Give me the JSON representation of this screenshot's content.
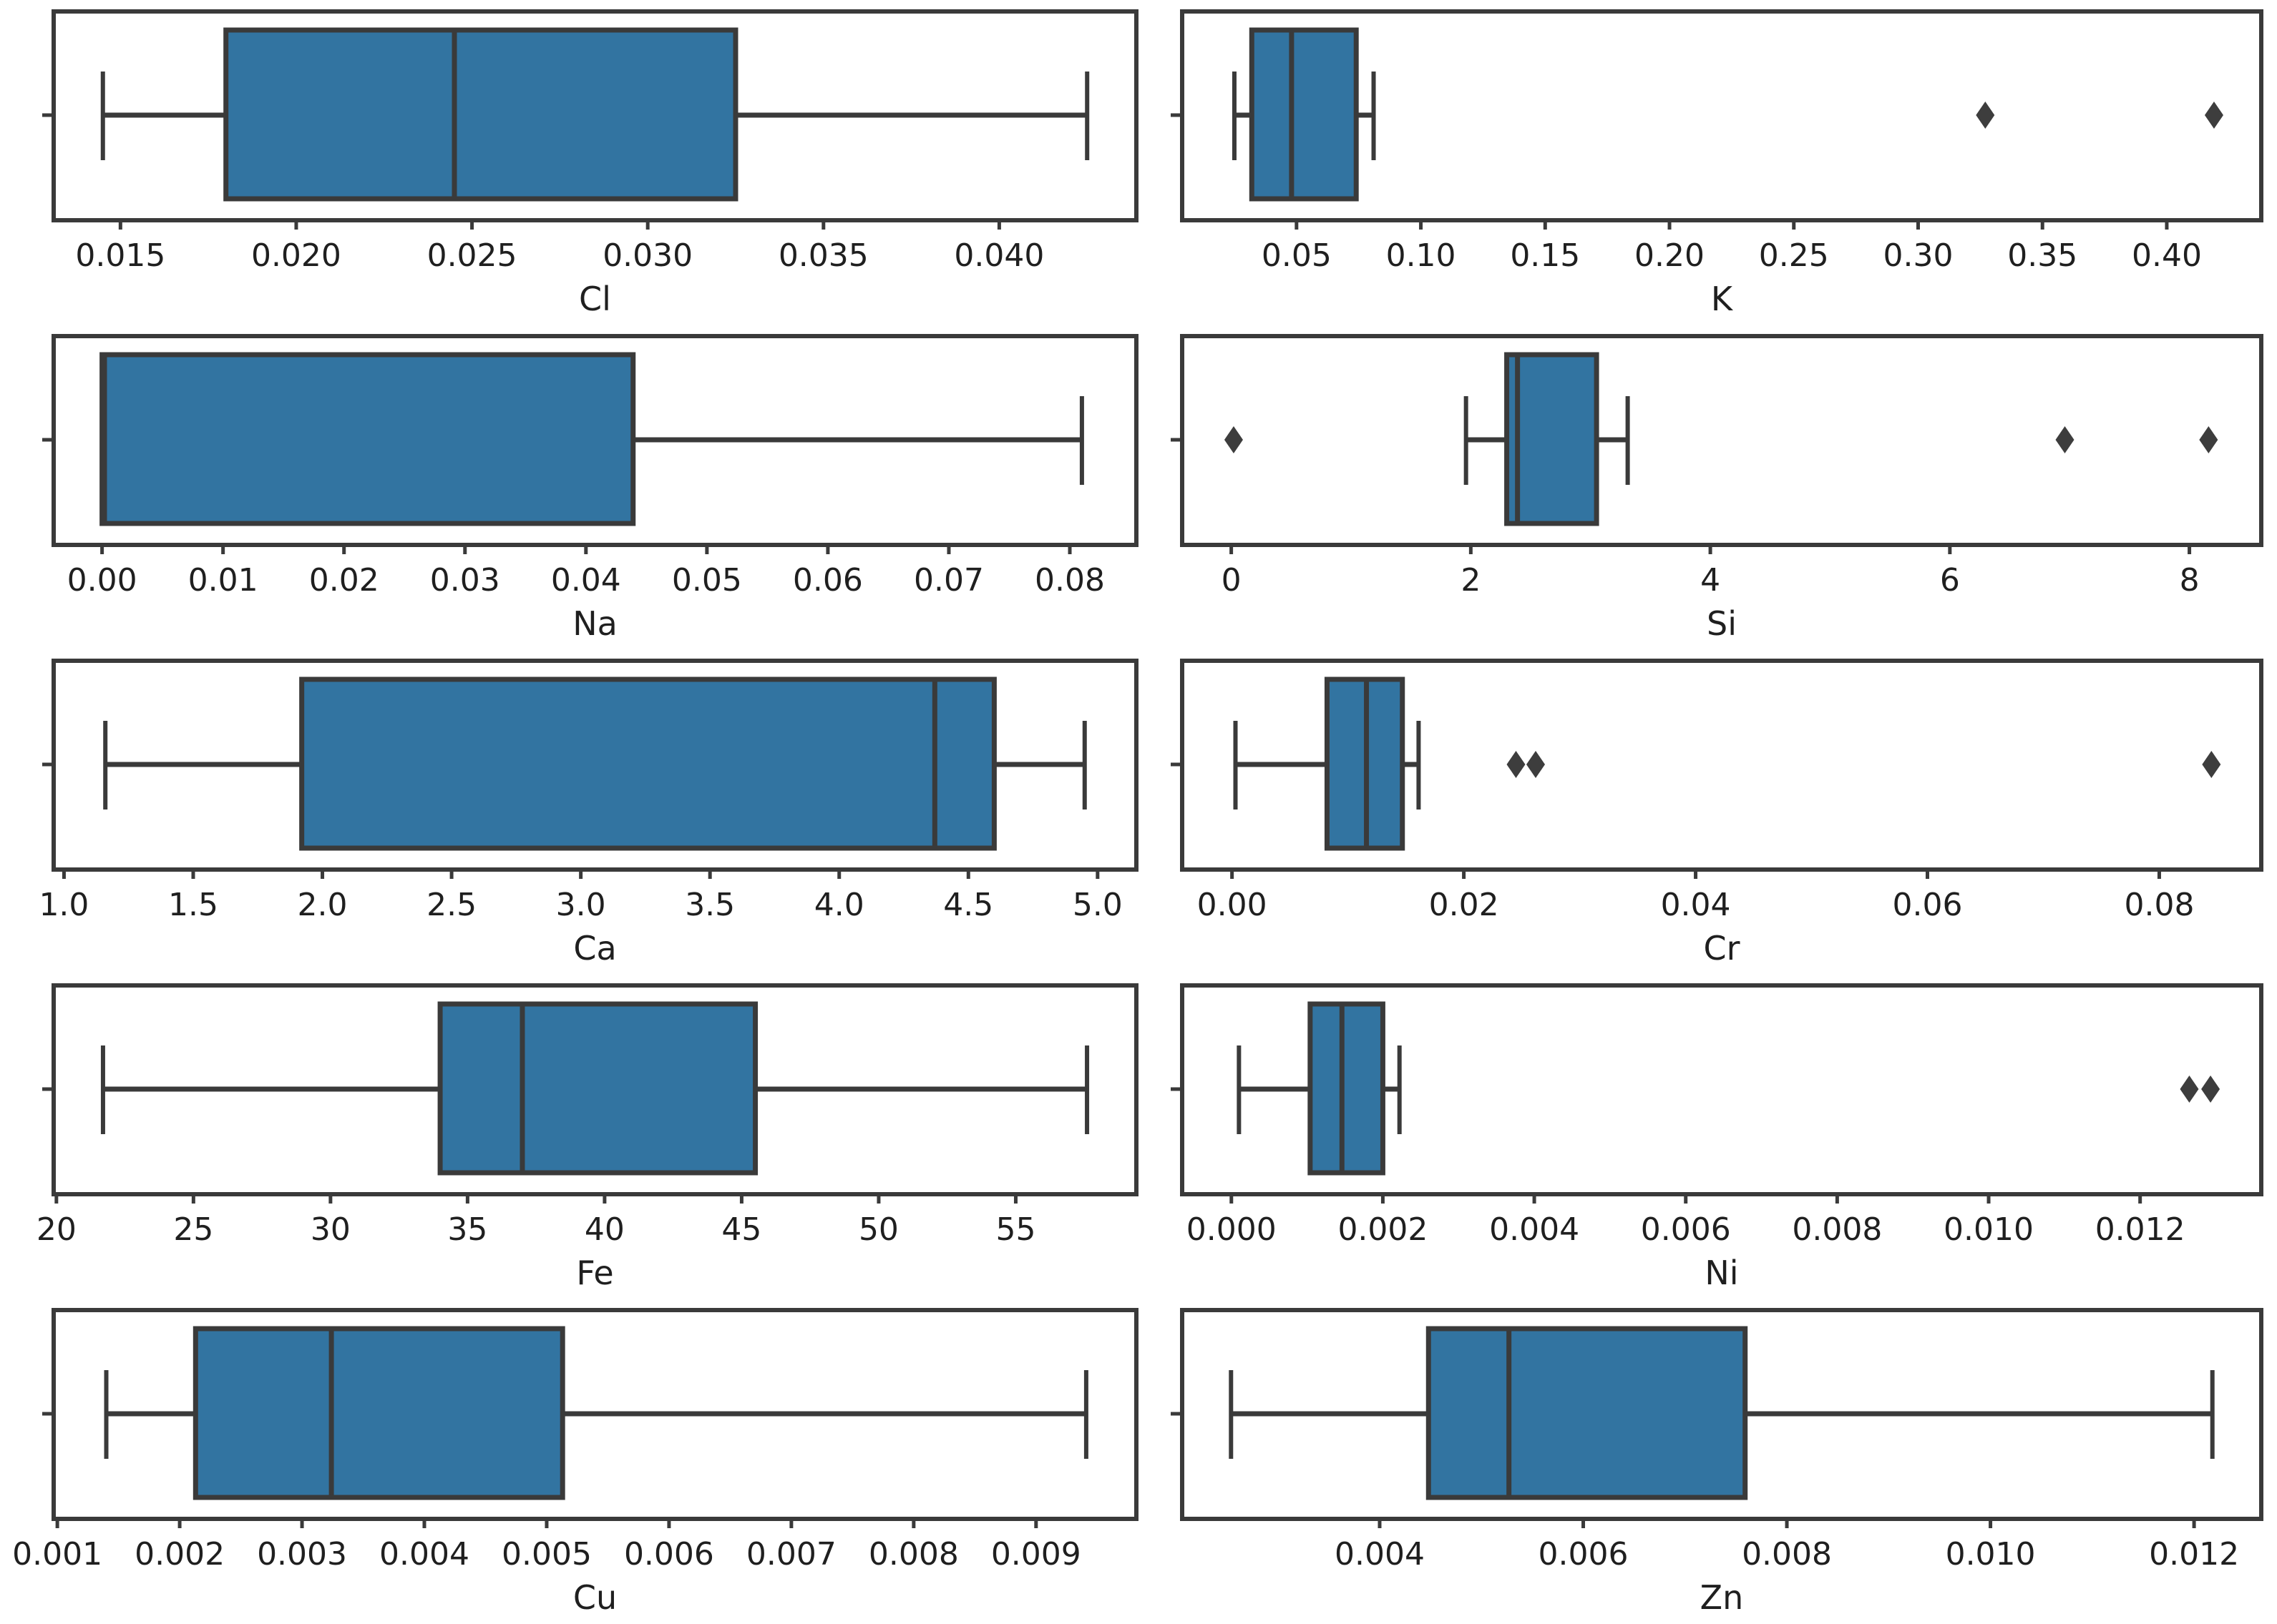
{
  "figure": {
    "title": "",
    "background_color": "#ffffff",
    "box_fill_color": "#3274a1",
    "line_color": "#3a3a3a",
    "outlier_color": "#3d3d3d",
    "rows": 5,
    "cols": 2
  },
  "chart_data": [
    {
      "type": "box",
      "orientation": "horizontal",
      "xlabel": "Cl",
      "xlim": [
        0.0131,
        0.0439
      ],
      "tick_values": [
        0.015,
        0.02,
        0.025,
        0.03,
        0.035,
        0.04
      ],
      "tick_labels": [
        "0.015",
        "0.020",
        "0.025",
        "0.030",
        "0.035",
        "0.040"
      ],
      "stats": {
        "whislo": 0.0145,
        "q1": 0.018,
        "med": 0.0245,
        "q3": 0.0325,
        "whishi": 0.0425
      },
      "fliers": []
    },
    {
      "type": "box",
      "orientation": "horizontal",
      "xlabel": "K",
      "xlim": [
        0.004,
        0.438
      ],
      "tick_values": [
        0.05,
        0.1,
        0.15,
        0.2,
        0.25,
        0.3,
        0.35,
        0.4
      ],
      "tick_labels": [
        "0.05",
        "0.10",
        "0.15",
        "0.20",
        "0.25",
        "0.30",
        "0.35",
        "0.40"
      ],
      "stats": {
        "whislo": 0.025,
        "q1": 0.032,
        "med": 0.048,
        "q3": 0.074,
        "whishi": 0.081
      },
      "fliers": [
        0.327,
        0.419
      ]
    },
    {
      "type": "box",
      "orientation": "horizontal",
      "xlabel": "Na",
      "xlim": [
        -0.004,
        0.0855
      ],
      "tick_values": [
        0.0,
        0.01,
        0.02,
        0.03,
        0.04,
        0.05,
        0.06,
        0.07,
        0.08
      ],
      "tick_labels": [
        "0.00",
        "0.01",
        "0.02",
        "0.03",
        "0.04",
        "0.05",
        "0.06",
        "0.07",
        "0.08"
      ],
      "stats": {
        "whislo": 0.0,
        "q1": 0.0,
        "med": 0.0002,
        "q3": 0.0439,
        "whishi": 0.081
      },
      "fliers": []
    },
    {
      "type": "box",
      "orientation": "horizontal",
      "xlabel": "Si",
      "xlim": [
        -0.41,
        8.6
      ],
      "tick_values": [
        0,
        2,
        4,
        6,
        8
      ],
      "tick_labels": [
        "0",
        "2",
        "4",
        "6",
        "8"
      ],
      "stats": {
        "whislo": 1.96,
        "q1": 2.3,
        "med": 2.39,
        "q3": 3.05,
        "whishi": 3.31
      },
      "fliers": [
        0.02,
        6.96,
        8.16
      ]
    },
    {
      "type": "box",
      "orientation": "horizontal",
      "xlabel": "Ca",
      "xlim": [
        0.96,
        5.15
      ],
      "tick_values": [
        1.0,
        1.5,
        2.0,
        2.5,
        3.0,
        3.5,
        4.0,
        4.5,
        5.0
      ],
      "tick_labels": [
        "1.0",
        "1.5",
        "2.0",
        "2.5",
        "3.0",
        "3.5",
        "4.0",
        "4.5",
        "5.0"
      ],
      "stats": {
        "whislo": 1.16,
        "q1": 1.92,
        "med": 4.37,
        "q3": 4.6,
        "whishi": 4.95
      },
      "fliers": []
    },
    {
      "type": "box",
      "orientation": "horizontal",
      "xlabel": "Cr",
      "xlim": [
        -0.0043,
        0.0888
      ],
      "tick_values": [
        0.0,
        0.02,
        0.04,
        0.06,
        0.08
      ],
      "tick_labels": [
        "0.00",
        "0.02",
        "0.04",
        "0.06",
        "0.08"
      ],
      "stats": {
        "whislo": 0.0003,
        "q1": 0.0082,
        "med": 0.0116,
        "q3": 0.0147,
        "whishi": 0.0161
      },
      "fliers": [
        0.0245,
        0.0262,
        0.0845
      ]
    },
    {
      "type": "box",
      "orientation": "horizontal",
      "xlabel": "Fe",
      "xlim": [
        19.9,
        59.4
      ],
      "tick_values": [
        20,
        25,
        30,
        35,
        40,
        45,
        50,
        55
      ],
      "tick_labels": [
        "20",
        "25",
        "30",
        "35",
        "40",
        "45",
        "50",
        "55"
      ],
      "stats": {
        "whislo": 21.7,
        "q1": 34.0,
        "med": 37.0,
        "q3": 45.5,
        "whishi": 57.6
      },
      "fliers": []
    },
    {
      "type": "box",
      "orientation": "horizontal",
      "xlabel": "Ni",
      "xlim": [
        -0.00065,
        0.0136
      ],
      "tick_values": [
        0.0,
        0.002,
        0.004,
        0.006,
        0.008,
        0.01,
        0.012
      ],
      "tick_labels": [
        "0.000",
        "0.002",
        "0.004",
        "0.006",
        "0.008",
        "0.010",
        "0.012"
      ],
      "stats": {
        "whislo": 0.0001,
        "q1": 0.00104,
        "med": 0.00146,
        "q3": 0.002,
        "whishi": 0.00222
      },
      "fliers": [
        0.01265,
        0.01293
      ]
    },
    {
      "type": "box",
      "orientation": "horizontal",
      "xlabel": "Cu",
      "xlim": [
        0.00097,
        0.00982
      ],
      "tick_values": [
        0.001,
        0.002,
        0.003,
        0.004,
        0.005,
        0.006,
        0.007,
        0.008,
        0.009
      ],
      "tick_labels": [
        "0.001",
        "0.002",
        "0.003",
        "0.004",
        "0.005",
        "0.006",
        "0.007",
        "0.008",
        "0.009"
      ],
      "stats": {
        "whislo": 0.0014,
        "q1": 0.00213,
        "med": 0.00324,
        "q3": 0.00513,
        "whishi": 0.00941
      },
      "fliers": []
    },
    {
      "type": "box",
      "orientation": "horizontal",
      "xlabel": "Zn",
      "xlim": [
        0.00206,
        0.01266
      ],
      "tick_values": [
        0.004,
        0.006,
        0.008,
        0.01,
        0.012
      ],
      "tick_labels": [
        "0.004",
        "0.006",
        "0.008",
        "0.010",
        "0.012"
      ],
      "stats": {
        "whislo": 0.00254,
        "q1": 0.00448,
        "med": 0.00527,
        "q3": 0.00759,
        "whishi": 0.01218
      },
      "fliers": []
    }
  ]
}
